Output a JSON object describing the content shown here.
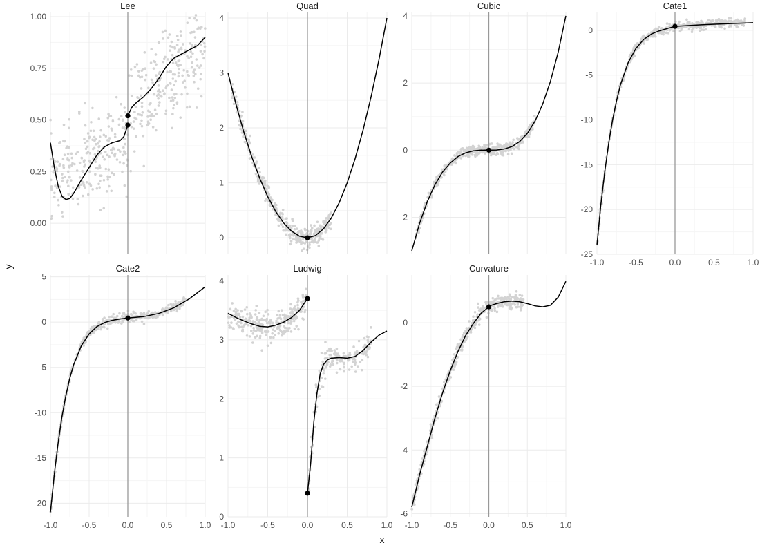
{
  "chart_data": {
    "type": "scatter",
    "xlabel": "x",
    "ylabel": "y",
    "grid": true,
    "legend": "none",
    "colors": {
      "points": "#d3d3d3",
      "curve": "#000000",
      "cutoff_line": "#999999",
      "grid_major": "#ebebeb",
      "grid_minor": "#f5f5f5"
    },
    "cutoff": 0,
    "panels": [
      {
        "id": "lee",
        "title": "Lee",
        "xlim": [
          -1,
          1
        ],
        "ylim": [
          -0.15,
          1.02
        ],
        "x_ticks": [
          -1.0,
          -0.5,
          0.0,
          0.5,
          1.0
        ],
        "x_tick_labels": [],
        "y_ticks": [
          0,
          0.25,
          0.5,
          0.75,
          1.0
        ],
        "y_tick_labels": [
          "0.00",
          "0.25",
          "0.50",
          "0.75",
          "1.00"
        ],
        "curve_left": [
          [
            -1.0,
            0.39
          ],
          [
            -0.95,
            0.27
          ],
          [
            -0.9,
            0.18
          ],
          [
            -0.85,
            0.13
          ],
          [
            -0.8,
            0.115
          ],
          [
            -0.75,
            0.12
          ],
          [
            -0.7,
            0.145
          ],
          [
            -0.6,
            0.21
          ],
          [
            -0.5,
            0.27
          ],
          [
            -0.4,
            0.33
          ],
          [
            -0.3,
            0.37
          ],
          [
            -0.2,
            0.39
          ],
          [
            -0.1,
            0.4
          ],
          [
            -0.05,
            0.42
          ],
          [
            0.0,
            0.475
          ]
        ],
        "curve_right": [
          [
            0.0,
            0.52
          ],
          [
            0.05,
            0.56
          ],
          [
            0.1,
            0.58
          ],
          [
            0.2,
            0.61
          ],
          [
            0.3,
            0.65
          ],
          [
            0.4,
            0.7
          ],
          [
            0.5,
            0.76
          ],
          [
            0.6,
            0.8
          ],
          [
            0.7,
            0.82
          ],
          [
            0.8,
            0.84
          ],
          [
            0.9,
            0.86
          ],
          [
            1.0,
            0.9
          ]
        ],
        "cutoff_points": [
          [
            0,
            0.475
          ],
          [
            0,
            0.52
          ]
        ],
        "scatter": {
          "n": 480,
          "noise": "wide",
          "x_range": [
            -1,
            1
          ],
          "trend_left": [
            [
              -1,
              0.2
            ],
            [
              0,
              0.4
            ]
          ],
          "trend_right": [
            [
              0,
              0.52
            ],
            [
              1,
              0.88
            ]
          ],
          "sd": 0.11
        }
      },
      {
        "id": "quad",
        "title": "Quad",
        "xlim": [
          -1,
          1
        ],
        "ylim": [
          -0.3,
          4.1
        ],
        "x_ticks": [
          -1.0,
          -0.5,
          0.0,
          0.5,
          1.0
        ],
        "x_tick_labels": [],
        "y_ticks": [
          0,
          1,
          2,
          3,
          4
        ],
        "y_tick_labels": [
          "0",
          "1",
          "2",
          "3",
          "4"
        ],
        "curve_left": [
          [
            -1.0,
            3.0
          ],
          [
            -0.9,
            2.43
          ],
          [
            -0.8,
            1.92
          ],
          [
            -0.7,
            1.47
          ],
          [
            -0.6,
            1.08
          ],
          [
            -0.5,
            0.75
          ],
          [
            -0.4,
            0.48
          ],
          [
            -0.3,
            0.27
          ],
          [
            -0.2,
            0.12
          ],
          [
            -0.1,
            0.03
          ],
          [
            0.0,
            0.0
          ]
        ],
        "curve_right": [
          [
            0.0,
            0.0
          ],
          [
            0.1,
            0.04
          ],
          [
            0.2,
            0.16
          ],
          [
            0.3,
            0.36
          ],
          [
            0.4,
            0.64
          ],
          [
            0.5,
            1.0
          ],
          [
            0.6,
            1.44
          ],
          [
            0.7,
            1.96
          ],
          [
            0.8,
            2.56
          ],
          [
            0.9,
            3.24
          ],
          [
            1.0,
            4.0
          ]
        ],
        "cutoff_points": [
          [
            0,
            0.0
          ]
        ],
        "scatter": {
          "n": 420,
          "x_range": [
            -0.95,
            0.3
          ],
          "sd": 0.09
        }
      },
      {
        "id": "cubic",
        "title": "Cubic",
        "xlim": [
          -1,
          1
        ],
        "ylim": [
          -3.1,
          4.1
        ],
        "x_ticks": [
          -1.0,
          -0.5,
          0.0,
          0.5,
          1.0
        ],
        "x_tick_labels": [],
        "y_ticks": [
          -2,
          0,
          2,
          4
        ],
        "y_tick_labels": [
          "-2",
          "0",
          "2",
          "4"
        ],
        "curve_left": [
          [
            -1.0,
            -3.0
          ],
          [
            -0.9,
            -2.19
          ],
          [
            -0.8,
            -1.54
          ],
          [
            -0.7,
            -1.03
          ],
          [
            -0.6,
            -0.65
          ],
          [
            -0.5,
            -0.38
          ],
          [
            -0.4,
            -0.19
          ],
          [
            -0.3,
            -0.08
          ],
          [
            -0.2,
            -0.02
          ],
          [
            -0.1,
            0.0
          ],
          [
            0.0,
            0.0
          ]
        ],
        "curve_right": [
          [
            0.0,
            0.0
          ],
          [
            0.1,
            0.004
          ],
          [
            0.2,
            0.032
          ],
          [
            0.3,
            0.108
          ],
          [
            0.4,
            0.256
          ],
          [
            0.5,
            0.5
          ],
          [
            0.6,
            0.864
          ],
          [
            0.7,
            1.372
          ],
          [
            0.8,
            2.048
          ],
          [
            0.9,
            2.916
          ],
          [
            1.0,
            4.0
          ]
        ],
        "cutoff_points": [
          [
            0,
            0.0
          ]
        ],
        "scatter": {
          "n": 420,
          "x_range": [
            -0.95,
            0.6
          ],
          "sd": 0.08
        }
      },
      {
        "id": "cate1",
        "title": "Cate1",
        "xlim": [
          -1,
          1
        ],
        "ylim": [
          -25,
          2
        ],
        "x_ticks": [
          -1.0,
          -0.5,
          0.0,
          0.5,
          1.0
        ],
        "x_tick_labels": [
          "-1.0",
          "-0.5",
          "0.0",
          "0.5",
          "1.0"
        ],
        "y_ticks": [
          0,
          -5,
          -10,
          -15,
          -20,
          -25
        ],
        "y_tick_labels": [
          "0",
          "-5",
          "-10",
          "-15",
          "-20",
          "-25"
        ],
        "curve_left": [
          [
            -1.0,
            -24.0
          ],
          [
            -0.95,
            -19.5
          ],
          [
            -0.9,
            -15.8
          ],
          [
            -0.85,
            -12.6
          ],
          [
            -0.8,
            -10.0
          ],
          [
            -0.75,
            -7.9
          ],
          [
            -0.7,
            -6.1
          ],
          [
            -0.6,
            -3.6
          ],
          [
            -0.5,
            -2.0
          ],
          [
            -0.4,
            -1.0
          ],
          [
            -0.3,
            -0.4
          ],
          [
            -0.2,
            -0.05
          ],
          [
            -0.1,
            0.2
          ],
          [
            0.0,
            0.45
          ]
        ],
        "curve_right": [
          [
            0.0,
            0.45
          ],
          [
            0.2,
            0.55
          ],
          [
            0.4,
            0.65
          ],
          [
            0.6,
            0.72
          ],
          [
            0.8,
            0.78
          ],
          [
            1.0,
            0.85
          ]
        ],
        "cutoff_points": [
          [
            0,
            0.45
          ]
        ],
        "scatter": {
          "n": 440,
          "x_range": [
            -1,
            0.9
          ],
          "sd": 0.25
        }
      },
      {
        "id": "cate2",
        "title": "Cate2",
        "xlim": [
          -1,
          1
        ],
        "ylim": [
          -21.5,
          5.2
        ],
        "x_ticks": [
          -1.0,
          -0.5,
          0.0,
          0.5,
          1.0
        ],
        "x_tick_labels": [
          "-1.0",
          "-0.5",
          "0.0",
          "0.5",
          "1.0"
        ],
        "y_ticks": [
          5,
          0,
          -5,
          -10,
          -15,
          -20
        ],
        "y_tick_labels": [
          "5",
          "0",
          "-5",
          "-10",
          "-15",
          "-20"
        ],
        "curve_left": [
          [
            -1.0,
            -21.0
          ],
          [
            -0.95,
            -16.8
          ],
          [
            -0.9,
            -13.3
          ],
          [
            -0.85,
            -10.4
          ],
          [
            -0.8,
            -8.1
          ],
          [
            -0.75,
            -6.2
          ],
          [
            -0.7,
            -4.7
          ],
          [
            -0.6,
            -2.6
          ],
          [
            -0.5,
            -1.3
          ],
          [
            -0.4,
            -0.5
          ],
          [
            -0.3,
            -0.05
          ],
          [
            -0.2,
            0.2
          ],
          [
            -0.1,
            0.35
          ],
          [
            0.0,
            0.45
          ]
        ],
        "curve_right": [
          [
            0.0,
            0.45
          ],
          [
            0.2,
            0.6
          ],
          [
            0.4,
            0.95
          ],
          [
            0.6,
            1.6
          ],
          [
            0.8,
            2.6
          ],
          [
            1.0,
            3.9
          ]
        ],
        "cutoff_points": [
          [
            0,
            0.45
          ]
        ],
        "scatter": {
          "n": 440,
          "x_range": [
            -1,
            0.75
          ],
          "sd": 0.25
        }
      },
      {
        "id": "ludwig",
        "title": "Ludwig",
        "xlim": [
          -1,
          1
        ],
        "ylim": [
          0,
          4.1
        ],
        "x_ticks": [
          -1.0,
          -0.5,
          0.0,
          0.5,
          1.0
        ],
        "x_tick_labels": [
          "-1.0",
          "-0.5",
          "0.0",
          "0.5",
          "1.0"
        ],
        "y_ticks": [
          0,
          1,
          2,
          3,
          4
        ],
        "y_tick_labels": [
          "0",
          "1",
          "2",
          "3",
          "4"
        ],
        "curve_left": [
          [
            -1.0,
            3.45
          ],
          [
            -0.9,
            3.38
          ],
          [
            -0.8,
            3.32
          ],
          [
            -0.7,
            3.27
          ],
          [
            -0.6,
            3.23
          ],
          [
            -0.5,
            3.22
          ],
          [
            -0.4,
            3.25
          ],
          [
            -0.3,
            3.3
          ],
          [
            -0.2,
            3.38
          ],
          [
            -0.1,
            3.5
          ],
          [
            0.0,
            3.7
          ]
        ],
        "curve_right": [
          [
            0.0,
            0.4
          ],
          [
            0.04,
            0.9
          ],
          [
            0.08,
            1.6
          ],
          [
            0.12,
            2.1
          ],
          [
            0.16,
            2.42
          ],
          [
            0.2,
            2.58
          ],
          [
            0.25,
            2.66
          ],
          [
            0.3,
            2.69
          ],
          [
            0.4,
            2.7
          ],
          [
            0.5,
            2.69
          ],
          [
            0.6,
            2.72
          ],
          [
            0.7,
            2.82
          ],
          [
            0.8,
            2.96
          ],
          [
            0.9,
            3.08
          ],
          [
            1.0,
            3.15
          ]
        ],
        "cutoff_points": [
          [
            0,
            3.7
          ],
          [
            0,
            0.4
          ]
        ],
        "scatter": {
          "n": 460,
          "x_range": [
            -1,
            0.8
          ],
          "sd": 0.12
        }
      },
      {
        "id": "curvature",
        "title": "Curvature",
        "xlim": [
          -1,
          1
        ],
        "ylim": [
          -6.1,
          1.5
        ],
        "x_ticks": [
          -1.0,
          -0.5,
          0.0,
          0.5,
          1.0
        ],
        "x_tick_labels": [
          "-1.0",
          "-0.5",
          "0.0",
          "0.5",
          "1.0"
        ],
        "y_ticks": [
          0,
          -2,
          -4,
          -6
        ],
        "y_tick_labels": [
          "0",
          "-2",
          "-4",
          "-6"
        ],
        "curve_left": [
          [
            -1.0,
            -5.8
          ],
          [
            -0.9,
            -4.8
          ],
          [
            -0.8,
            -3.9
          ],
          [
            -0.7,
            -3.0
          ],
          [
            -0.6,
            -2.2
          ],
          [
            -0.5,
            -1.5
          ],
          [
            -0.4,
            -0.9
          ],
          [
            -0.3,
            -0.4
          ],
          [
            -0.2,
            -0.02
          ],
          [
            -0.1,
            0.3
          ],
          [
            0.0,
            0.5
          ]
        ],
        "curve_right": [
          [
            0.0,
            0.52
          ],
          [
            0.1,
            0.6
          ],
          [
            0.2,
            0.66
          ],
          [
            0.3,
            0.68
          ],
          [
            0.4,
            0.66
          ],
          [
            0.5,
            0.6
          ],
          [
            0.6,
            0.53
          ],
          [
            0.7,
            0.5
          ],
          [
            0.8,
            0.55
          ],
          [
            0.9,
            0.8
          ],
          [
            1.0,
            1.3
          ]
        ],
        "cutoff_points": [
          [
            0,
            0.5
          ]
        ],
        "scatter": {
          "n": 440,
          "x_range": [
            -1,
            0.45
          ],
          "sd": 0.12
        }
      }
    ]
  }
}
